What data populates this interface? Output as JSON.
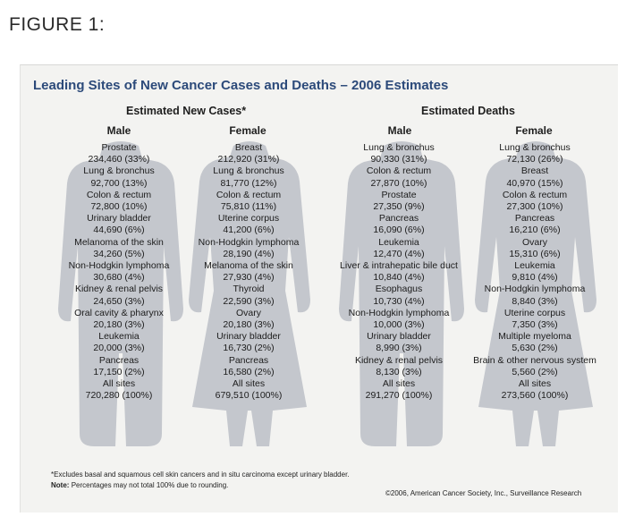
{
  "figure_label": "FIGURE 1:",
  "title": "Leading Sites of New Cancer Cases and Deaths – 2006 Estimates",
  "new_cases_heading": "Estimated New Cases*",
  "deaths_heading": "Estimated Deaths",
  "col_heads": [
    "Male",
    "Female",
    "Male",
    "Female"
  ],
  "columns": [
    [
      {
        "site": "Prostate",
        "value": "234,460 (33%)"
      },
      {
        "site": "Lung & bronchus",
        "value": "92,700 (13%)"
      },
      {
        "site": "Colon & rectum",
        "value": "72,800 (10%)"
      },
      {
        "site": "Urinary bladder",
        "value": "44,690 (6%)"
      },
      {
        "site": "Melanoma of the skin",
        "value": "34,260 (5%)"
      },
      {
        "site": "Non-Hodgkin lymphoma",
        "value": "30,680 (4%)"
      },
      {
        "site": "Kidney & renal pelvis",
        "value": "24,650 (3%)"
      },
      {
        "site": "Oral cavity & pharynx",
        "value": "20,180 (3%)"
      },
      {
        "site": "Leukemia",
        "value": "20,000 (3%)"
      },
      {
        "site": "Pancreas",
        "value": "17,150 (2%)"
      },
      {
        "site": "All sites",
        "value": "720,280 (100%)"
      }
    ],
    [
      {
        "site": "Breast",
        "value": "212,920 (31%)"
      },
      {
        "site": "Lung & bronchus",
        "value": "81,770 (12%)"
      },
      {
        "site": "Colon & rectum",
        "value": "75,810 (11%)"
      },
      {
        "site": "Uterine corpus",
        "value": "41,200 (6%)"
      },
      {
        "site": "Non-Hodgkin lymphoma",
        "value": "28,190 (4%)"
      },
      {
        "site": "Melanoma of the skin",
        "value": "27,930 (4%)"
      },
      {
        "site": "Thyroid",
        "value": "22,590 (3%)"
      },
      {
        "site": "Ovary",
        "value": "20,180 (3%)"
      },
      {
        "site": "Urinary bladder",
        "value": "16,730 (2%)"
      },
      {
        "site": "Pancreas",
        "value": "16,580 (2%)"
      },
      {
        "site": "All sites",
        "value": "679,510 (100%)"
      }
    ],
    [
      {
        "site": "Lung & bronchus",
        "value": "90,330 (31%)"
      },
      {
        "site": "Colon & rectum",
        "value": "27,870 (10%)"
      },
      {
        "site": "Prostate",
        "value": "27,350 (9%)"
      },
      {
        "site": "Pancreas",
        "value": "16,090 (6%)"
      },
      {
        "site": "Leukemia",
        "value": "12,470 (4%)"
      },
      {
        "site": "Liver & intrahepatic bile duct",
        "value": "10,840 (4%)"
      },
      {
        "site": "Esophagus",
        "value": "10,730 (4%)"
      },
      {
        "site": "Non-Hodgkin lymphoma",
        "value": "10,000 (3%)"
      },
      {
        "site": "Urinary bladder",
        "value": "8,990 (3%)"
      },
      {
        "site": "Kidney & renal pelvis",
        "value": "8,130 (3%)"
      },
      {
        "site": "All sites",
        "value": "291,270 (100%)"
      }
    ],
    [
      {
        "site": "Lung & bronchus",
        "value": "72,130 (26%)"
      },
      {
        "site": "Breast",
        "value": "40,970 (15%)"
      },
      {
        "site": "Colon & rectum",
        "value": "27,300 (10%)"
      },
      {
        "site": "Pancreas",
        "value": "16,210 (6%)"
      },
      {
        "site": "Ovary",
        "value": "15,310 (6%)"
      },
      {
        "site": "Leukemia",
        "value": "9,810 (4%)"
      },
      {
        "site": "Non-Hodgkin lymphoma",
        "value": "8,840 (3%)"
      },
      {
        "site": "Uterine corpus",
        "value": "7,350 (3%)"
      },
      {
        "site": "Multiple myeloma",
        "value": "5,630 (2%)"
      },
      {
        "site": "Brain & other nervous system",
        "value": "5,560 (2%)"
      },
      {
        "site": "All sites",
        "value": "273,560 (100%)"
      }
    ]
  ],
  "footnote": "*Excludes basal and squamous cell skin cancers and in situ carcinoma except urinary bladder.",
  "note_label": "Note:",
  "note_text": "Percentages may not total 100% due to rounding.",
  "copyright": "©2006, American Cancer Society, Inc., Surveillance Research",
  "colors": {
    "silhouette": "#c4c7cd",
    "title": "#2c4a7a",
    "panel": "#f3f3f1"
  }
}
